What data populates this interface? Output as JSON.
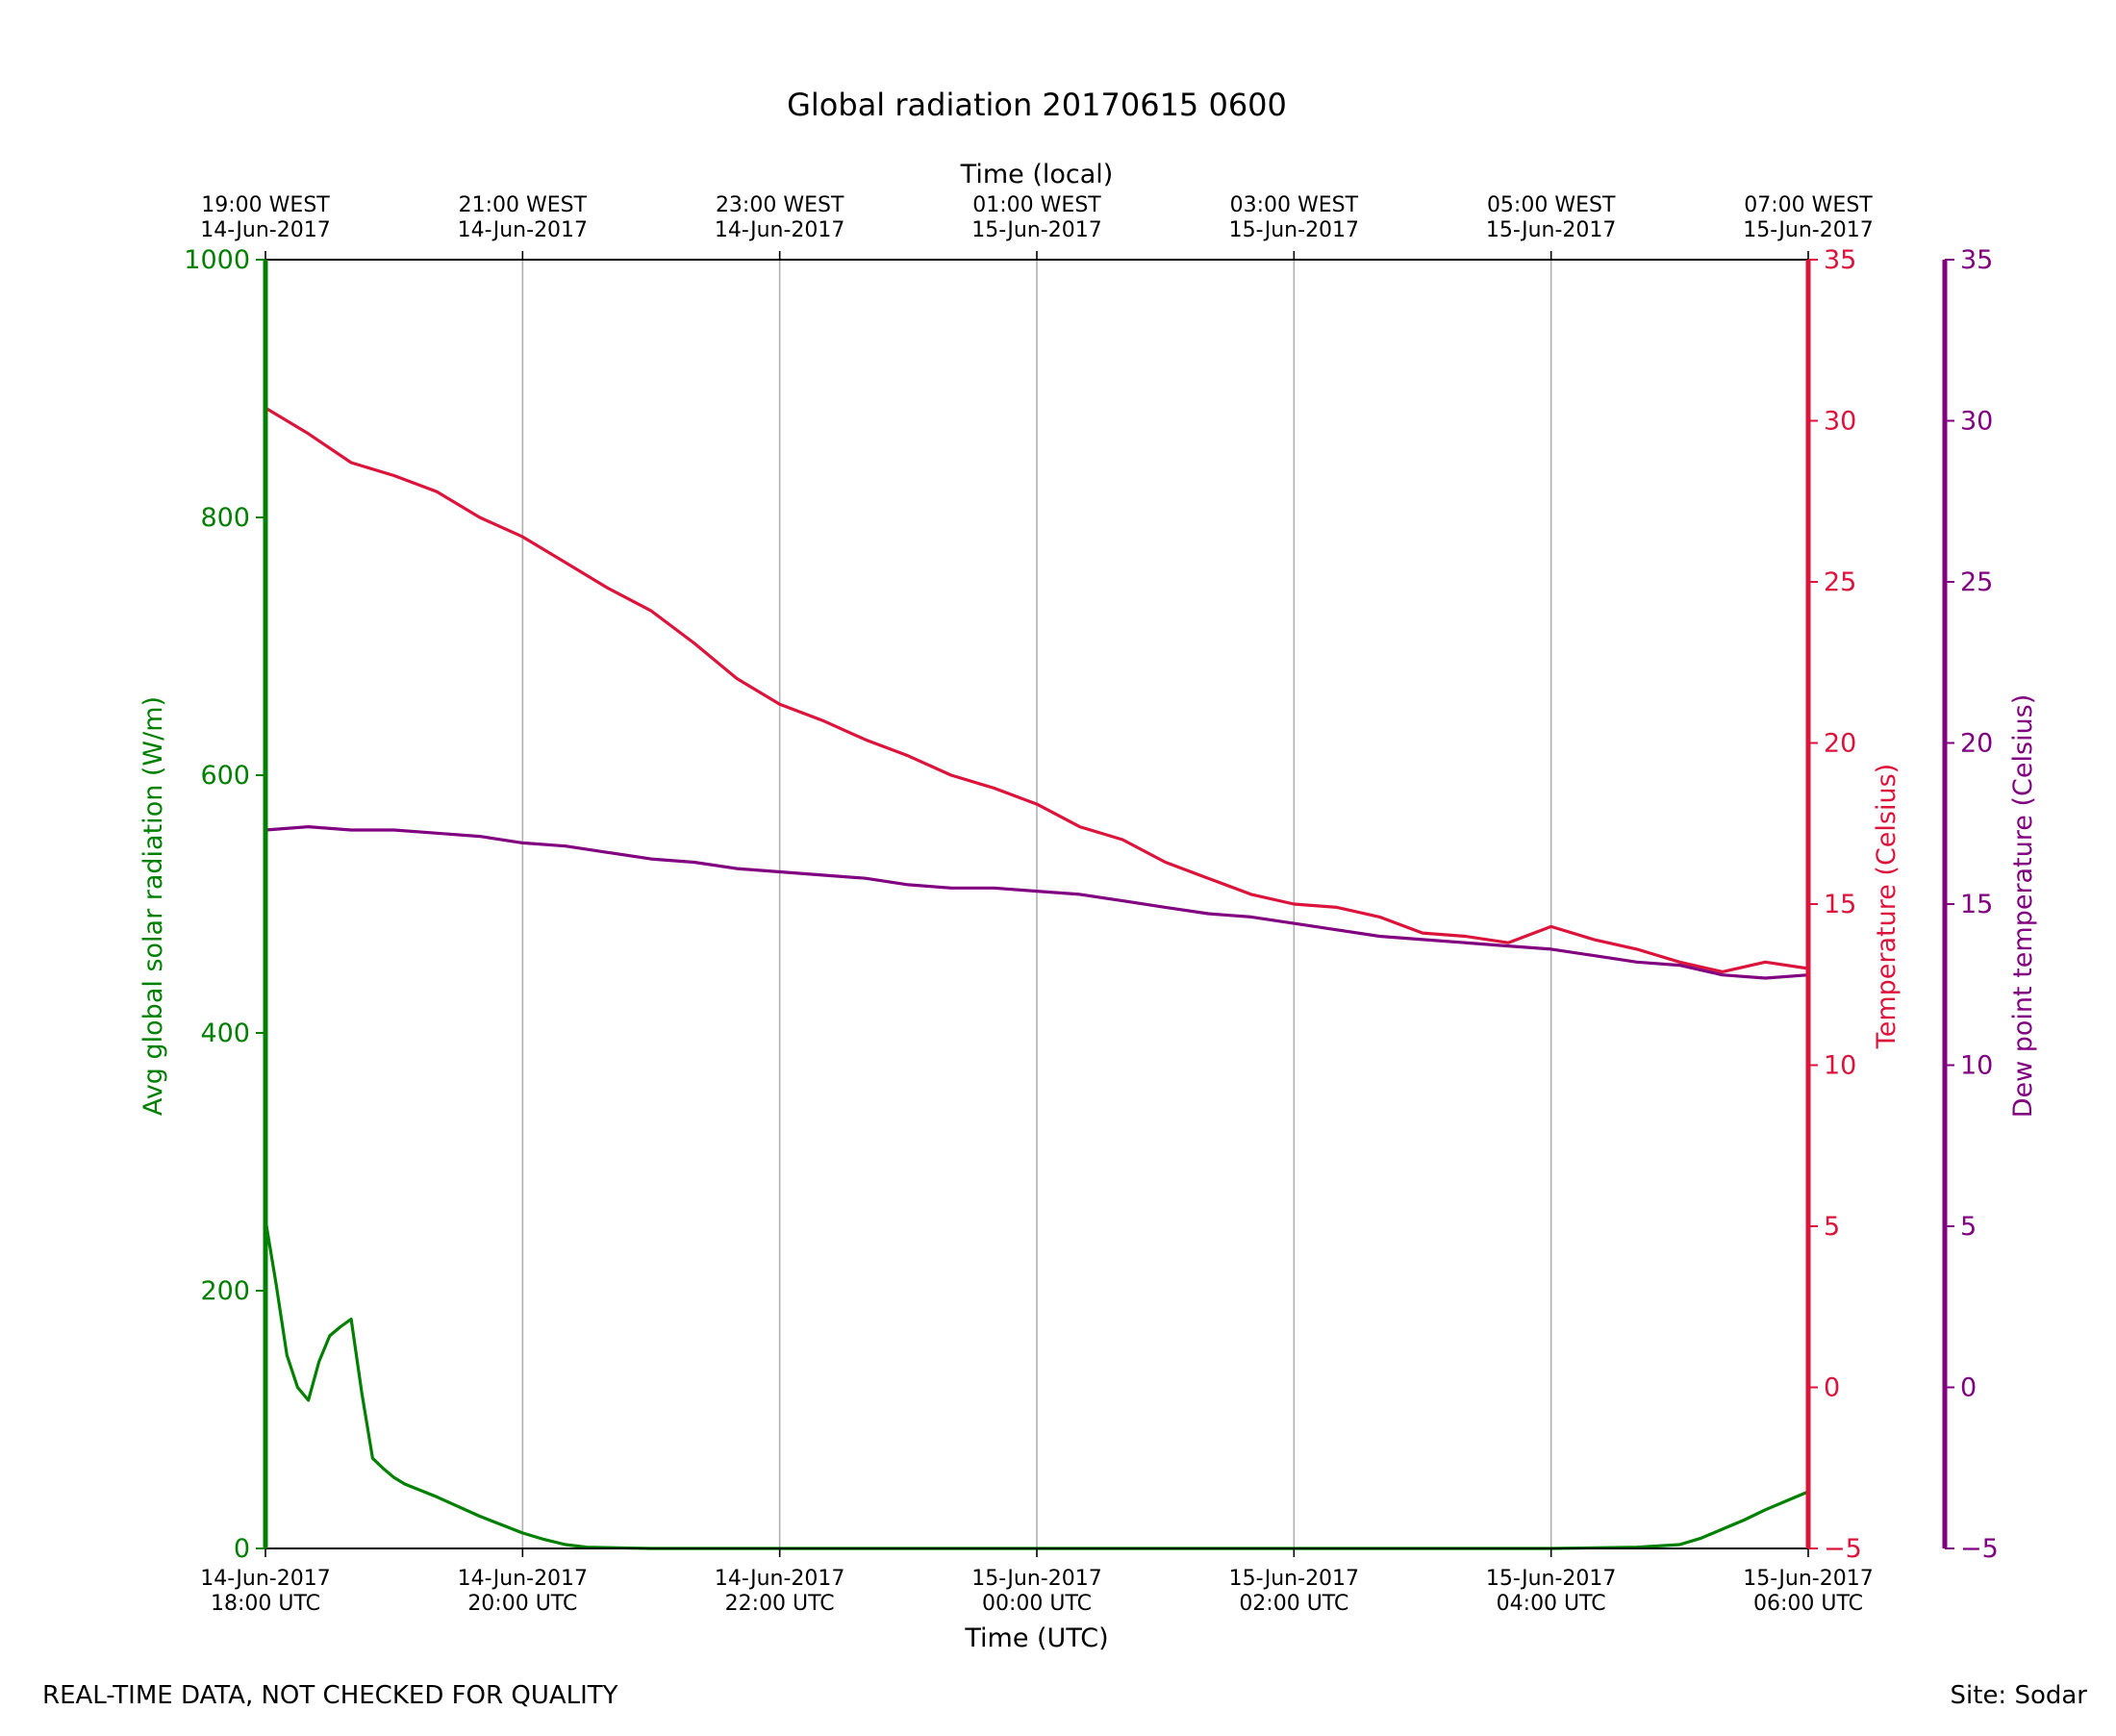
{
  "chart_data": {
    "type": "line",
    "title": "Global radiation 20170615 0600",
    "xlabel": "Time (UTC)",
    "x2label": "Time (local)",
    "xlim": [
      "2017-06-14 18:00",
      "2017-06-15 06:00"
    ],
    "grid": "vertical lines at major x ticks",
    "x_ticks_utc": [
      {
        "line1": "14-Jun-2017",
        "line2": "18:00 UTC"
      },
      {
        "line1": "14-Jun-2017",
        "line2": "20:00 UTC"
      },
      {
        "line1": "14-Jun-2017",
        "line2": "22:00 UTC"
      },
      {
        "line1": "15-Jun-2017",
        "line2": "00:00 UTC"
      },
      {
        "line1": "15-Jun-2017",
        "line2": "02:00 UTC"
      },
      {
        "line1": "15-Jun-2017",
        "line2": "04:00 UTC"
      },
      {
        "line1": "15-Jun-2017",
        "line2": "06:00 UTC"
      }
    ],
    "x_ticks_local": [
      {
        "line1": "19:00 WEST",
        "line2": "14-Jun-2017"
      },
      {
        "line1": "21:00 WEST",
        "line2": "14-Jun-2017"
      },
      {
        "line1": "23:00 WEST",
        "line2": "14-Jun-2017"
      },
      {
        "line1": "01:00 WEST",
        "line2": "15-Jun-2017"
      },
      {
        "line1": "03:00 WEST",
        "line2": "15-Jun-2017"
      },
      {
        "line1": "05:00 WEST",
        "line2": "15-Jun-2017"
      },
      {
        "line1": "07:00 WEST",
        "line2": "15-Jun-2017"
      }
    ],
    "y_axes": {
      "radiation": {
        "label": "Avg global solar radiation (W/m)",
        "ylim": [
          0,
          1000
        ],
        "ticks": [
          "0",
          "200",
          "400",
          "600",
          "800",
          "1000"
        ],
        "color": "#008000"
      },
      "temperature": {
        "label": "Temperature (Celsius)",
        "ylim": [
          -5,
          35
        ],
        "ticks": [
          "−5",
          "0",
          "5",
          "10",
          "15",
          "20",
          "25",
          "30",
          "35"
        ],
        "color": "#dc143c"
      },
      "dewpoint": {
        "label": "Dew point temperature (Celsius)",
        "ylim": [
          -5,
          35
        ],
        "ticks": [
          "−5",
          "0",
          "5",
          "10",
          "15",
          "20",
          "25",
          "30",
          "35"
        ],
        "color": "#800080"
      }
    },
    "series": [
      {
        "name": "Avg global solar radiation",
        "axis": "radiation",
        "color": "#008000",
        "x": [
          "2017-06-14 18:00",
          "2017-06-14 18:05",
          "2017-06-14 18:10",
          "2017-06-14 18:15",
          "2017-06-14 18:20",
          "2017-06-14 18:25",
          "2017-06-14 18:30",
          "2017-06-14 18:35",
          "2017-06-14 18:40",
          "2017-06-14 18:45",
          "2017-06-14 18:50",
          "2017-06-14 18:55",
          "2017-06-14 19:00",
          "2017-06-14 19:05",
          "2017-06-14 19:20",
          "2017-06-14 19:40",
          "2017-06-14 20:00",
          "2017-06-14 20:10",
          "2017-06-14 20:20",
          "2017-06-14 20:30",
          "2017-06-14 21:00",
          "2017-06-14 22:00",
          "2017-06-15 00:00",
          "2017-06-15 02:00",
          "2017-06-15 04:00",
          "2017-06-15 04:40",
          "2017-06-15 05:00",
          "2017-06-15 05:10",
          "2017-06-15 05:20",
          "2017-06-15 05:30",
          "2017-06-15 05:40",
          "2017-06-15 05:50",
          "2017-06-15 06:00"
        ],
        "values": [
          255,
          205,
          150,
          125,
          115,
          145,
          165,
          172,
          178,
          120,
          70,
          62,
          55,
          50,
          40,
          25,
          12,
          7,
          3,
          1,
          0,
          0,
          0,
          0,
          0,
          1,
          3,
          8,
          15,
          22,
          30,
          37,
          44
        ]
      },
      {
        "name": "Temperature",
        "axis": "temperature",
        "color": "#dc143c",
        "x": [
          "2017-06-14 18:00",
          "2017-06-14 18:20",
          "2017-06-14 18:40",
          "2017-06-14 19:00",
          "2017-06-14 19:20",
          "2017-06-14 19:40",
          "2017-06-14 20:00",
          "2017-06-14 20:20",
          "2017-06-14 20:40",
          "2017-06-14 21:00",
          "2017-06-14 21:20",
          "2017-06-14 21:40",
          "2017-06-14 22:00",
          "2017-06-14 22:20",
          "2017-06-14 22:40",
          "2017-06-14 23:00",
          "2017-06-14 23:20",
          "2017-06-14 23:40",
          "2017-06-15 00:00",
          "2017-06-15 00:20",
          "2017-06-15 00:40",
          "2017-06-15 01:00",
          "2017-06-15 01:20",
          "2017-06-15 01:40",
          "2017-06-15 02:00",
          "2017-06-15 02:20",
          "2017-06-15 02:40",
          "2017-06-15 03:00",
          "2017-06-15 03:20",
          "2017-06-15 03:40",
          "2017-06-15 04:00",
          "2017-06-15 04:20",
          "2017-06-15 04:40",
          "2017-06-15 05:00",
          "2017-06-15 05:20",
          "2017-06-15 05:40",
          "2017-06-15 06:00"
        ],
        "values": [
          30.4,
          29.6,
          28.7,
          28.3,
          27.8,
          27.0,
          26.4,
          25.6,
          24.8,
          24.1,
          23.1,
          22.0,
          21.2,
          20.7,
          20.1,
          19.6,
          19.0,
          18.6,
          18.1,
          17.4,
          17.0,
          16.3,
          15.8,
          15.3,
          15.0,
          14.9,
          14.6,
          14.1,
          14.0,
          13.8,
          14.3,
          13.9,
          13.6,
          13.2,
          12.9,
          13.2,
          13.0
        ]
      },
      {
        "name": "Dew point temperature",
        "axis": "dewpoint",
        "color": "#800080",
        "x": [
          "2017-06-14 18:00",
          "2017-06-14 18:20",
          "2017-06-14 18:40",
          "2017-06-14 19:00",
          "2017-06-14 19:20",
          "2017-06-14 19:40",
          "2017-06-14 20:00",
          "2017-06-14 20:20",
          "2017-06-14 20:40",
          "2017-06-14 21:00",
          "2017-06-14 21:20",
          "2017-06-14 21:40",
          "2017-06-14 22:00",
          "2017-06-14 22:20",
          "2017-06-14 22:40",
          "2017-06-14 23:00",
          "2017-06-14 23:20",
          "2017-06-14 23:40",
          "2017-06-15 00:00",
          "2017-06-15 00:20",
          "2017-06-15 00:40",
          "2017-06-15 01:00",
          "2017-06-15 01:20",
          "2017-06-15 01:40",
          "2017-06-15 02:00",
          "2017-06-15 02:20",
          "2017-06-15 02:40",
          "2017-06-15 03:00",
          "2017-06-15 03:20",
          "2017-06-15 03:40",
          "2017-06-15 04:00",
          "2017-06-15 04:20",
          "2017-06-15 04:40",
          "2017-06-15 05:00",
          "2017-06-15 05:20",
          "2017-06-15 05:40",
          "2017-06-15 06:00"
        ],
        "values": [
          17.3,
          17.4,
          17.3,
          17.3,
          17.2,
          17.1,
          16.9,
          16.8,
          16.6,
          16.4,
          16.3,
          16.1,
          16.0,
          15.9,
          15.8,
          15.6,
          15.5,
          15.5,
          15.4,
          15.3,
          15.1,
          14.9,
          14.7,
          14.6,
          14.4,
          14.2,
          14.0,
          13.9,
          13.8,
          13.7,
          13.6,
          13.4,
          13.2,
          13.1,
          12.8,
          12.7,
          12.8
        ]
      }
    ]
  },
  "footer": {
    "left": "REAL-TIME DATA, NOT CHECKED FOR QUALITY",
    "right": "Site: Sodar"
  }
}
